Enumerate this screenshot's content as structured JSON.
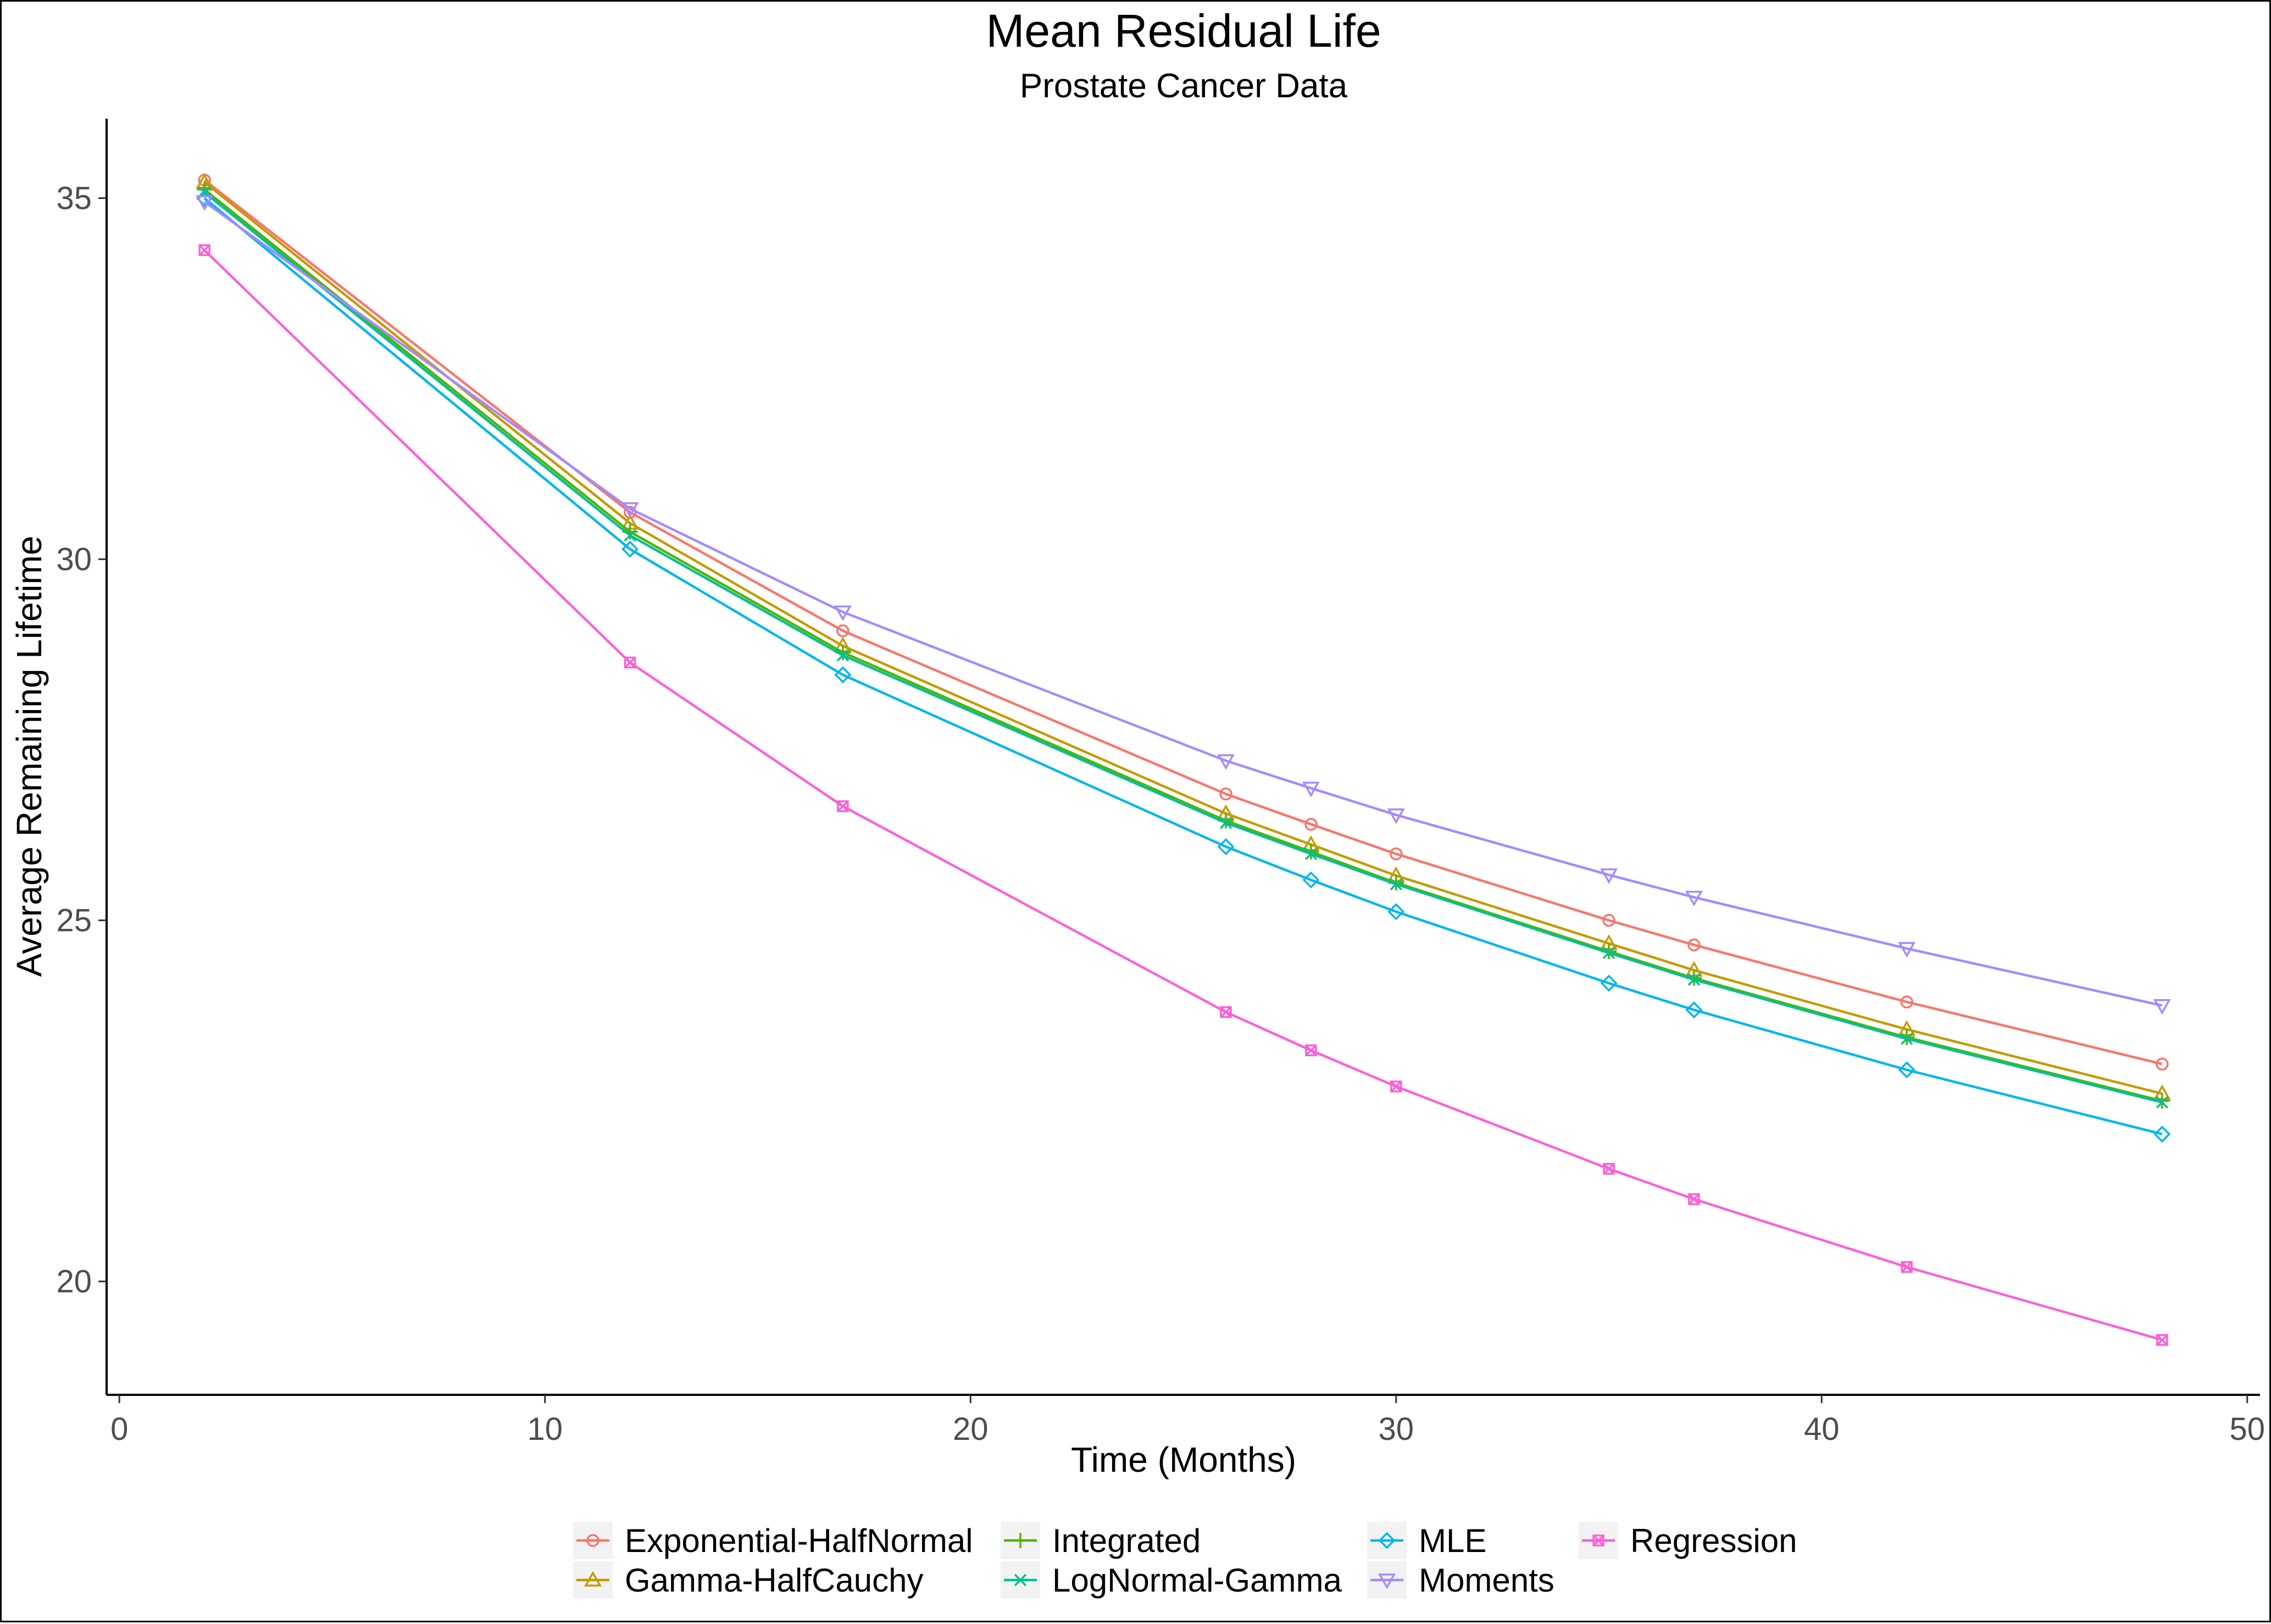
{
  "chart_data": {
    "type": "line",
    "title": "Mean Residual Life",
    "subtitle": "Prostate Cancer Data",
    "xlabel": "Time (Months)",
    "ylabel": "Average Remaining Lifetime",
    "xlim": [
      -0.3,
      50.3
    ],
    "ylim": [
      18.43,
      36.1
    ],
    "x_ticks": [
      0,
      10,
      20,
      30,
      40,
      50
    ],
    "y_ticks": [
      20,
      25,
      30,
      35
    ],
    "grid": false,
    "legend_position": "bottom",
    "x": [
      2,
      12,
      17,
      26,
      28,
      30,
      35,
      37,
      42,
      48
    ],
    "series": [
      {
        "name": "Exponential-HalfNormal",
        "color": "#F8766D",
        "marker": "circle",
        "values": [
          35.25,
          30.65,
          29.01,
          26.75,
          26.33,
          25.92,
          25.0,
          24.66,
          23.87,
          23.01
        ]
      },
      {
        "name": "Gamma-HalfCauchy",
        "color": "#C49A00",
        "marker": "triangle-up",
        "values": [
          35.22,
          30.5,
          28.8,
          26.48,
          26.05,
          25.62,
          24.68,
          24.31,
          23.49,
          22.6
        ]
      },
      {
        "name": "Integrated",
        "color": "#53B400",
        "marker": "plus",
        "values": [
          35.12,
          30.38,
          28.71,
          26.38,
          25.95,
          25.52,
          24.57,
          24.2,
          23.38,
          22.5
        ]
      },
      {
        "name": "LogNormal-Gamma",
        "color": "#00C094",
        "marker": "cross",
        "values": [
          35.08,
          30.33,
          28.67,
          26.35,
          25.92,
          25.5,
          24.55,
          24.18,
          23.36,
          22.48
        ]
      },
      {
        "name": "MLE",
        "color": "#00B6EB",
        "marker": "diamond",
        "values": [
          35.0,
          30.14,
          28.4,
          26.02,
          25.56,
          25.12,
          24.13,
          23.76,
          22.93,
          22.04
        ]
      },
      {
        "name": "Moments",
        "color": "#A58AFF",
        "marker": "triangle-down",
        "values": [
          34.95,
          30.7,
          29.27,
          27.21,
          26.83,
          26.46,
          25.63,
          25.32,
          24.61,
          23.82
        ]
      },
      {
        "name": "Regression",
        "color": "#FB61D7",
        "marker": "square-cross",
        "values": [
          34.28,
          28.57,
          26.58,
          23.73,
          23.2,
          22.7,
          21.56,
          21.14,
          20.2,
          19.19
        ]
      }
    ]
  }
}
